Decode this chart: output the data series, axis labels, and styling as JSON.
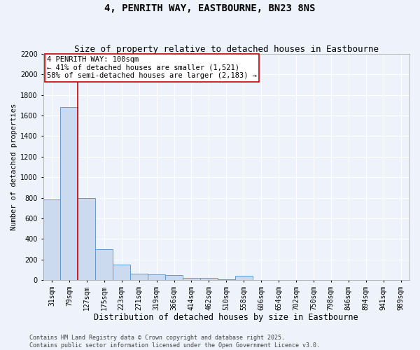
{
  "title": "4, PENRITH WAY, EASTBOURNE, BN23 8NS",
  "subtitle": "Size of property relative to detached houses in Eastbourne",
  "xlabel": "Distribution of detached houses by size in Eastbourne",
  "ylabel": "Number of detached properties",
  "categories": [
    "31sqm",
    "79sqm",
    "127sqm",
    "175sqm",
    "223sqm",
    "271sqm",
    "319sqm",
    "366sqm",
    "414sqm",
    "462sqm",
    "510sqm",
    "558sqm",
    "606sqm",
    "654sqm",
    "702sqm",
    "750sqm",
    "798sqm",
    "846sqm",
    "894sqm",
    "941sqm",
    "989sqm"
  ],
  "values": [
    780,
    1680,
    800,
    300,
    150,
    60,
    55,
    45,
    20,
    18,
    8,
    38,
    0,
    0,
    0,
    0,
    0,
    0,
    0,
    0,
    0
  ],
  "bar_color": "#ccdaf0",
  "bar_edge_color": "#6699cc",
  "bar_edge_width": 0.7,
  "vline_x": 1.5,
  "vline_color": "#cc0000",
  "vline_linewidth": 1.2,
  "annotation_text": "4 PENRITH WAY: 100sqm\n← 41% of detached houses are smaller (1,521)\n58% of semi-detached houses are larger (2,183) →",
  "annotation_box_facecolor": "#ffffff",
  "annotation_box_edgecolor": "#cc0000",
  "ylim": [
    0,
    2200
  ],
  "yticks": [
    0,
    200,
    400,
    600,
    800,
    1000,
    1200,
    1400,
    1600,
    1800,
    2000,
    2200
  ],
  "background_color": "#edf2fb",
  "plot_bg_color": "#edf2fb",
  "grid_color": "#ffffff",
  "footer_line1": "Contains HM Land Registry data © Crown copyright and database right 2025.",
  "footer_line2": "Contains public sector information licensed under the Open Government Licence v3.0.",
  "title_fontsize": 10,
  "subtitle_fontsize": 9,
  "xlabel_fontsize": 8.5,
  "ylabel_fontsize": 7.5,
  "tick_fontsize": 7,
  "annotation_fontsize": 7.5,
  "footer_fontsize": 6
}
